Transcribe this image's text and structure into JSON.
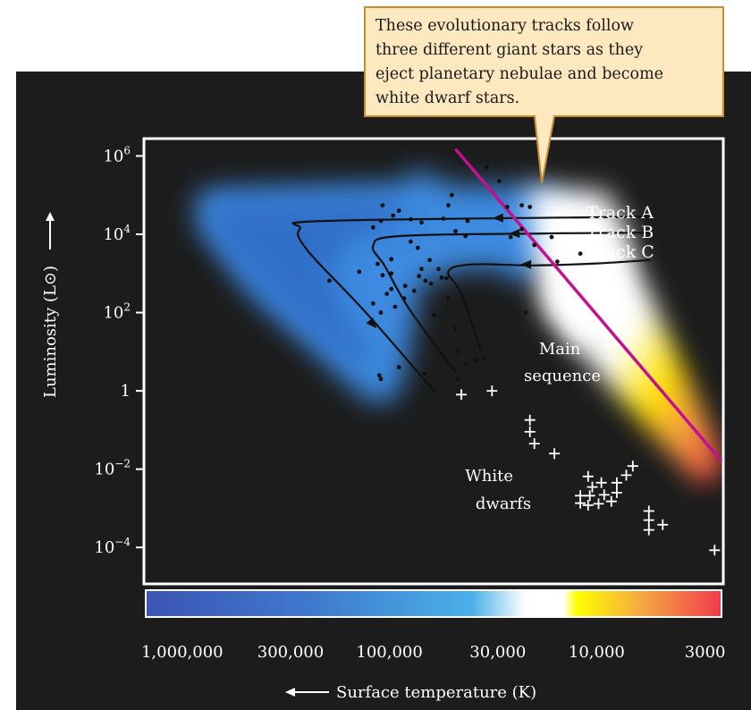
{
  "chart_data": {
    "type": "scatter",
    "title": "",
    "xlabel": "Surface temperature (K)",
    "ylabel": "Luminosity (L⊙)",
    "x_scale": "log",
    "y_scale": "log",
    "x_reversed": true,
    "xlim": [
      1500000,
      2500
    ],
    "ylim": [
      1.3e-05,
      2500000
    ],
    "xticks": [
      1000000,
      300000,
      100000,
      30000,
      10000,
      3000
    ],
    "xtick_labels": [
      "1,000,000",
      "300,000",
      "100,000",
      "30,000",
      "10,000",
      "3000"
    ],
    "yticks": [
      1000000,
      10000,
      100,
      1,
      0.01,
      0.0001
    ],
    "ytick_labels": [
      {
        "base": "10",
        "exp": "6"
      },
      {
        "base": "10",
        "exp": "4"
      },
      {
        "base": "10",
        "exp": "2"
      },
      {
        "base": "1",
        "exp": ""
      },
      {
        "base": "10",
        "exp": "−2"
      },
      {
        "base": "10",
        "exp": "−4"
      }
    ],
    "temperature_colorbar": {
      "stops": [
        {
          "temp": 1500000,
          "color": "#3b55b3"
        },
        {
          "temp": 250000,
          "color": "#3f78cc"
        },
        {
          "temp": 40000,
          "color": "#4ab0e8"
        },
        {
          "temp": 22000,
          "color": "#ffffff"
        },
        {
          "temp": 14500,
          "color": "#ffffff"
        },
        {
          "temp": 12500,
          "color": "#ffff00"
        },
        {
          "temp": 6000,
          "color": "#f5a742"
        },
        {
          "temp": 2500,
          "color": "#f03a4a"
        }
      ]
    },
    "colors": {
      "panel_background": "#1c1c1c",
      "plot_border": "#ffffff",
      "track": "#111111",
      "main_sequence_line": "#c4108e",
      "callout_fill": "#fde8bf",
      "callout_border": "#c98d2e"
    },
    "series": [
      {
        "kind": "stars",
        "marker": "dot",
        "points": [
          {
            "x": 108000,
            "y": 55000
          },
          {
            "x": 90000,
            "y": 40000
          },
          {
            "x": 70000,
            "y": 20000
          },
          {
            "x": 110000,
            "y": 22000
          },
          {
            "x": 96000,
            "y": 30000
          },
          {
            "x": 79000,
            "y": 24000
          },
          {
            "x": 52000,
            "y": 55000
          },
          {
            "x": 50000,
            "y": 100000
          },
          {
            "x": 55000,
            "y": 25000
          },
          {
            "x": 48000,
            "y": 12000
          },
          {
            "x": 43000,
            "y": 9000
          },
          {
            "x": 42000,
            "y": 22000
          },
          {
            "x": 34000,
            "y": 520000
          },
          {
            "x": 29500,
            "y": 230000
          },
          {
            "x": 27000,
            "y": 50000
          },
          {
            "x": 23000,
            "y": 55000
          },
          {
            "x": 21000,
            "y": 50000
          },
          {
            "x": 26000,
            "y": 8500
          },
          {
            "x": 20000,
            "y": 5300
          },
          {
            "x": 23000,
            "y": 13500
          },
          {
            "x": 16500,
            "y": 8500
          },
          {
            "x": 195000,
            "y": 650
          },
          {
            "x": 140000,
            "y": 1100
          },
          {
            "x": 120000,
            "y": 15000
          },
          {
            "x": 114000,
            "y": 1750
          },
          {
            "x": 108000,
            "y": 900
          },
          {
            "x": 98000,
            "y": 2300
          },
          {
            "x": 120000,
            "y": 170
          },
          {
            "x": 110000,
            "y": 100
          },
          {
            "x": 103000,
            "y": 300
          },
          {
            "x": 98000,
            "y": 400
          },
          {
            "x": 94000,
            "y": 140
          },
          {
            "x": 84000,
            "y": 480
          },
          {
            "x": 79000,
            "y": 6500
          },
          {
            "x": 73000,
            "y": 4500
          },
          {
            "x": 72000,
            "y": 850
          },
          {
            "x": 67000,
            "y": 650
          },
          {
            "x": 63000,
            "y": 550
          },
          {
            "x": 85000,
            "y": 230
          },
          {
            "x": 76000,
            "y": 360
          },
          {
            "x": 58000,
            "y": 1300
          },
          {
            "x": 56000,
            "y": 780
          },
          {
            "x": 52000,
            "y": 230
          },
          {
            "x": 53000,
            "y": 750
          },
          {
            "x": 70000,
            "y": 1300
          },
          {
            "x": 64000,
            "y": 2200
          },
          {
            "x": 98000,
            "y": 1000
          },
          {
            "x": 61000,
            "y": 85
          },
          {
            "x": 48000,
            "y": 40
          },
          {
            "x": 47000,
            "y": 10
          },
          {
            "x": 43000,
            "y": 5
          },
          {
            "x": 38000,
            "y": 6
          },
          {
            "x": 35000,
            "y": 6.5
          },
          {
            "x": 90000,
            "y": 4
          },
          {
            "x": 112000,
            "y": 2.5
          },
          {
            "x": 110000,
            "y": 2
          },
          {
            "x": 68000,
            "y": 2.8
          },
          {
            "x": 47000,
            "y": 2
          },
          {
            "x": 22000,
            "y": 100
          },
          {
            "x": 12000,
            "y": 3200
          },
          {
            "x": 15500,
            "y": 2000
          }
        ]
      },
      {
        "kind": "white_dwarfs",
        "marker": "plus",
        "points": [
          {
            "x": 45000,
            "y": 0.8
          },
          {
            "x": 32000,
            "y": 1
          },
          {
            "x": 21000,
            "y": 0.18
          },
          {
            "x": 21000,
            "y": 0.09
          },
          {
            "x": 20000,
            "y": 0.045
          },
          {
            "x": 16000,
            "y": 0.025
          },
          {
            "x": 11000,
            "y": 0.0065
          },
          {
            "x": 10500,
            "y": 0.0035
          },
          {
            "x": 9500,
            "y": 0.0045
          },
          {
            "x": 8500,
            "y": 0.0015
          },
          {
            "x": 9200,
            "y": 0.0022
          },
          {
            "x": 10800,
            "y": 0.0021
          },
          {
            "x": 9800,
            "y": 0.0013
          },
          {
            "x": 11000,
            "y": 0.0012
          },
          {
            "x": 12000,
            "y": 0.0021
          },
          {
            "x": 12000,
            "y": 0.00135
          },
          {
            "x": 8000,
            "y": 0.0045
          },
          {
            "x": 8000,
            "y": 0.0025
          },
          {
            "x": 7200,
            "y": 0.007
          },
          {
            "x": 6700,
            "y": 0.012
          },
          {
            "x": 5600,
            "y": 0.00085
          },
          {
            "x": 4800,
            "y": 0.00038
          },
          {
            "x": 5600,
            "y": 0.0005
          },
          {
            "x": 5600,
            "y": 0.00028
          },
          {
            "x": 2700,
            "y": 8.5e-05
          }
        ]
      }
    ],
    "main_sequence": {
      "from": {
        "x": 48000,
        "y": 1500000
      },
      "to": {
        "x": 2500,
        "y": 0.016
      }
    },
    "tracks": [
      {
        "name": "Track A",
        "path": [
          {
            "x": 5500,
            "y": 28000
          },
          {
            "x": 200000,
            "y": 22000
          },
          {
            "x": 270000,
            "y": 14000
          },
          {
            "x": 250000,
            "y": 4000
          },
          {
            "x": 130000,
            "y": 100
          },
          {
            "x": 60000,
            "y": 0.9
          }
        ],
        "arrows": [
          {
            "x": 30000,
            "y": 26000
          },
          {
            "x": 120000,
            "y": 50
          }
        ]
      },
      {
        "name": "Track B",
        "path": [
          {
            "x": 5500,
            "y": 11000
          },
          {
            "x": 18000,
            "y": 10500
          },
          {
            "x": 90000,
            "y": 9000
          },
          {
            "x": 120000,
            "y": 5000
          },
          {
            "x": 105000,
            "y": 1500
          },
          {
            "x": 80000,
            "y": 120
          },
          {
            "x": 48000,
            "y": 3
          }
        ],
        "arrows": [
          {
            "x": 25000,
            "y": 10500
          }
        ]
      },
      {
        "name": "Track C",
        "path": [
          {
            "x": 5500,
            "y": 2200
          },
          {
            "x": 10000,
            "y": 1800
          },
          {
            "x": 20000,
            "y": 1600
          },
          {
            "x": 40000,
            "y": 1700
          },
          {
            "x": 52000,
            "y": 1100
          },
          {
            "x": 45000,
            "y": 300
          },
          {
            "x": 36000,
            "y": 10
          }
        ],
        "arrows": [
          {
            "x": 22000,
            "y": 1700
          }
        ]
      }
    ],
    "annotations": {
      "track_a": "Track A",
      "track_b": "Track B",
      "track_c": "Track C",
      "main_sequence": [
        "Main",
        "sequence"
      ],
      "white_dwarfs": [
        "White",
        "dwarfs"
      ],
      "callout": [
        "These evolutionary tracks follow",
        "three different giant stars as they",
        "eject planetary nebulae and become",
        "white dwarf stars."
      ]
    }
  }
}
